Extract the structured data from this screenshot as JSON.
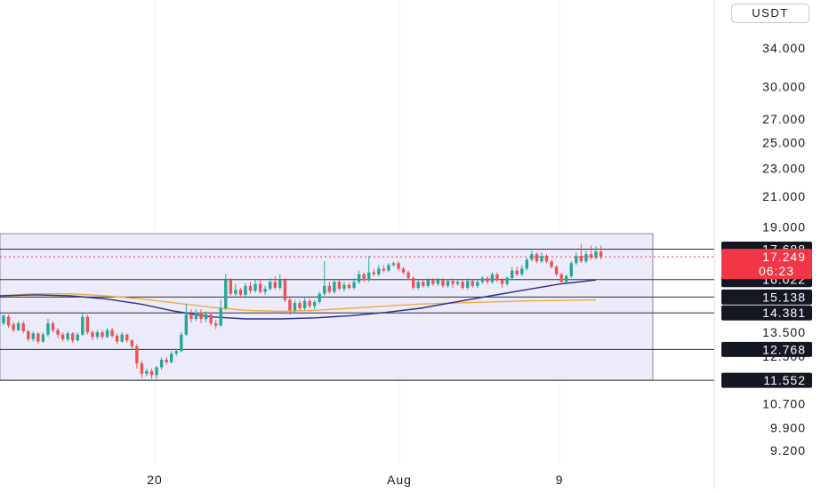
{
  "currency": "USDT",
  "colors": {
    "up": "#26a69a",
    "down": "#ef5350",
    "range_fill": "#ecebfa",
    "range_border": "#8e8ea6",
    "level_line": "#2a2e39",
    "ma_slow": "#2e2c86",
    "ma_fast": "#f4a93d",
    "last_price": "#f23645",
    "grid": "#eef0f3"
  },
  "chart_data": {
    "type": "candlestick",
    "price_scale": "log",
    "y_ticks": [
      "34.000",
      "30.000",
      "27.000",
      "25.000",
      "23.000",
      "21.000",
      "19.000",
      "13.500",
      "12.500",
      "10.700",
      "9.900",
      "9.200"
    ],
    "x_ticks": [
      "20",
      "Aug",
      "9"
    ],
    "levels": [
      {
        "label": "17.688",
        "value": 17.688
      },
      {
        "label": "16.022",
        "value": 16.022
      },
      {
        "label": "15.138",
        "value": 15.138
      },
      {
        "label": "14.381",
        "value": 14.381
      },
      {
        "label": "12.768",
        "value": 12.768
      },
      {
        "label": "11.552",
        "value": 11.552
      }
    ],
    "last_price": {
      "label": "17.249",
      "value": 17.249,
      "countdown": "06:23"
    },
    "range_box": {
      "top": 18.6,
      "bottom": 11.55
    },
    "ma_slow": [
      15.2,
      15.25,
      15.2,
      15.05,
      14.8,
      14.45,
      14.2,
      14.1,
      14.1,
      14.15,
      14.25,
      14.4,
      14.6,
      14.9,
      15.2,
      15.5,
      15.8,
      16.0
    ],
    "ma_fast": [
      15.2,
      15.3,
      15.3,
      15.2,
      15.05,
      14.85,
      14.65,
      14.5,
      14.45,
      14.5,
      14.6,
      14.7,
      14.8,
      14.85,
      14.9,
      14.95,
      14.97,
      15.0
    ],
    "candles": [
      [
        13.9,
        14.25,
        13.8,
        14.3
      ],
      [
        14.2,
        13.8,
        13.7,
        14.3
      ],
      [
        13.85,
        13.6,
        13.5,
        13.95
      ],
      [
        13.6,
        13.9,
        13.55,
        14.0
      ],
      [
        13.9,
        13.55,
        13.45,
        14.0
      ],
      [
        13.55,
        13.2,
        13.1,
        13.6
      ],
      [
        13.2,
        13.45,
        13.1,
        13.55
      ],
      [
        13.45,
        13.1,
        13.0,
        13.5
      ],
      [
        13.1,
        13.4,
        13.05,
        13.5
      ],
      [
        13.4,
        13.9,
        13.3,
        14.1
      ],
      [
        13.9,
        13.6,
        13.5,
        14.0
      ],
      [
        13.6,
        13.4,
        13.25,
        13.7
      ],
      [
        13.4,
        13.2,
        13.1,
        13.5
      ],
      [
        13.2,
        13.45,
        13.1,
        13.55
      ],
      [
        13.45,
        13.15,
        13.05,
        13.5
      ],
      [
        13.15,
        13.4,
        13.1,
        13.5
      ],
      [
        13.4,
        14.2,
        13.35,
        14.4
      ],
      [
        14.2,
        13.5,
        13.4,
        14.3
      ],
      [
        13.5,
        13.3,
        13.15,
        13.6
      ],
      [
        13.3,
        13.5,
        13.2,
        13.6
      ],
      [
        13.5,
        13.3,
        13.2,
        13.6
      ],
      [
        13.3,
        13.6,
        13.25,
        13.7
      ],
      [
        13.6,
        13.35,
        13.25,
        13.7
      ],
      [
        13.35,
        13.1,
        13.0,
        13.45
      ],
      [
        13.1,
        13.4,
        13.05,
        13.5
      ],
      [
        13.4,
        13.15,
        13.05,
        13.45
      ],
      [
        13.15,
        12.9,
        12.8,
        13.2
      ],
      [
        12.9,
        12.2,
        12.0,
        13.0
      ],
      [
        12.2,
        11.8,
        11.65,
        12.3
      ],
      [
        11.8,
        11.9,
        11.7,
        12.0
      ],
      [
        11.9,
        11.75,
        11.6,
        12.0
      ],
      [
        11.75,
        12.05,
        11.6,
        12.1
      ],
      [
        12.05,
        12.35,
        11.95,
        12.45
      ],
      [
        12.35,
        12.25,
        12.15,
        12.45
      ],
      [
        12.25,
        12.6,
        12.2,
        12.7
      ],
      [
        12.6,
        12.7,
        12.5,
        12.8
      ],
      [
        12.7,
        13.4,
        12.65,
        13.5
      ],
      [
        13.4,
        14.3,
        13.35,
        14.8
      ],
      [
        14.3,
        14.1,
        13.95,
        14.55
      ],
      [
        14.1,
        14.4,
        14.0,
        14.55
      ],
      [
        14.4,
        14.1,
        13.9,
        14.55
      ],
      [
        14.1,
        14.3,
        13.95,
        14.45
      ],
      [
        14.3,
        13.9,
        13.8,
        14.4
      ],
      [
        13.9,
        13.8,
        13.65,
        14.05
      ],
      [
        13.8,
        14.6,
        13.75,
        15.0
      ],
      [
        14.6,
        16.0,
        14.5,
        16.3
      ],
      [
        16.0,
        15.3,
        15.2,
        16.1
      ],
      [
        15.3,
        15.5,
        15.1,
        15.8
      ],
      [
        15.5,
        15.25,
        15.1,
        15.6
      ],
      [
        15.25,
        15.7,
        15.15,
        15.85
      ],
      [
        15.7,
        15.45,
        15.3,
        15.9
      ],
      [
        15.45,
        15.8,
        15.35,
        16.0
      ],
      [
        15.8,
        15.4,
        15.3,
        16.0
      ],
      [
        15.4,
        15.55,
        15.25,
        15.7
      ],
      [
        15.55,
        15.9,
        15.45,
        16.1
      ],
      [
        15.9,
        15.6,
        15.5,
        16.2
      ],
      [
        15.6,
        16.0,
        15.5,
        16.3
      ],
      [
        16.0,
        15.0,
        14.9,
        16.1
      ],
      [
        15.0,
        14.5,
        14.3,
        15.1
      ],
      [
        14.5,
        14.85,
        14.35,
        15.0
      ],
      [
        14.85,
        14.6,
        14.5,
        15.0
      ],
      [
        14.6,
        14.95,
        14.5,
        15.1
      ],
      [
        14.95,
        14.7,
        14.6,
        15.05
      ],
      [
        14.7,
        14.9,
        14.55,
        15.0
      ],
      [
        14.9,
        15.3,
        14.8,
        15.4
      ],
      [
        15.3,
        15.7,
        15.2,
        17.0
      ],
      [
        15.7,
        15.4,
        15.3,
        15.9
      ],
      [
        15.4,
        15.9,
        15.3,
        16.0
      ],
      [
        15.9,
        15.55,
        15.45,
        16.0
      ],
      [
        15.55,
        15.75,
        15.4,
        15.9
      ],
      [
        15.75,
        15.6,
        15.5,
        15.85
      ],
      [
        15.6,
        15.9,
        15.5,
        16.1
      ],
      [
        15.9,
        16.3,
        15.8,
        16.5
      ],
      [
        16.3,
        16.0,
        15.9,
        16.4
      ],
      [
        16.0,
        16.4,
        15.9,
        17.3
      ],
      [
        16.4,
        16.3,
        16.2,
        16.6
      ],
      [
        16.3,
        16.6,
        16.2,
        16.8
      ],
      [
        16.6,
        16.5,
        16.4,
        16.8
      ],
      [
        16.5,
        16.8,
        16.4,
        16.9
      ],
      [
        16.8,
        16.9,
        16.7,
        17.0
      ],
      [
        16.9,
        16.6,
        16.5,
        17.0
      ],
      [
        16.6,
        16.4,
        16.3,
        16.7
      ],
      [
        16.4,
        16.1,
        16.0,
        16.5
      ],
      [
        16.1,
        15.6,
        15.5,
        16.2
      ],
      [
        15.6,
        15.9,
        15.5,
        16.0
      ],
      [
        15.9,
        15.7,
        15.6,
        16.0
      ],
      [
        15.7,
        16.0,
        15.6,
        16.1
      ],
      [
        16.0,
        15.8,
        15.7,
        16.1
      ],
      [
        15.8,
        16.0,
        15.7,
        16.1
      ],
      [
        16.0,
        15.7,
        15.6,
        16.1
      ],
      [
        15.7,
        15.95,
        15.6,
        16.05
      ],
      [
        15.95,
        15.8,
        15.6,
        16.1
      ],
      [
        15.8,
        15.9,
        15.7,
        16.0
      ],
      [
        15.9,
        15.6,
        15.5,
        16.0
      ],
      [
        15.6,
        15.95,
        15.5,
        16.1
      ],
      [
        15.95,
        15.7,
        15.6,
        16.0
      ],
      [
        15.7,
        15.9,
        15.6,
        16.05
      ],
      [
        15.9,
        16.1,
        15.8,
        16.2
      ],
      [
        16.1,
        15.9,
        15.8,
        16.2
      ],
      [
        15.9,
        16.3,
        15.8,
        16.4
      ],
      [
        16.3,
        16.0,
        15.9,
        16.4
      ],
      [
        16.0,
        15.8,
        15.6,
        16.1
      ],
      [
        15.8,
        16.1,
        15.7,
        16.2
      ],
      [
        16.1,
        16.5,
        16.0,
        16.7
      ],
      [
        16.5,
        16.3,
        16.2,
        16.7
      ],
      [
        16.3,
        16.6,
        16.2,
        16.8
      ],
      [
        16.6,
        17.1,
        16.5,
        17.2
      ],
      [
        17.1,
        17.4,
        17.0,
        17.6
      ],
      [
        17.4,
        17.0,
        16.9,
        17.5
      ],
      [
        17.0,
        17.3,
        16.9,
        17.5
      ],
      [
        17.3,
        17.0,
        16.9,
        17.4
      ],
      [
        17.0,
        16.7,
        16.6,
        17.1
      ],
      [
        16.7,
        16.3,
        16.2,
        16.8
      ],
      [
        16.3,
        15.9,
        15.8,
        16.4
      ],
      [
        15.9,
        16.2,
        15.8,
        16.3
      ],
      [
        16.2,
        16.9,
        16.1,
        17.0
      ],
      [
        16.9,
        17.3,
        16.8,
        17.5
      ],
      [
        17.3,
        17.0,
        16.9,
        18.0
      ],
      [
        17.0,
        17.4,
        16.9,
        17.6
      ],
      [
        17.4,
        17.2,
        17.1,
        17.9
      ],
      [
        17.2,
        17.55,
        17.1,
        17.85
      ],
      [
        17.55,
        17.249,
        17.1,
        17.9
      ]
    ]
  }
}
